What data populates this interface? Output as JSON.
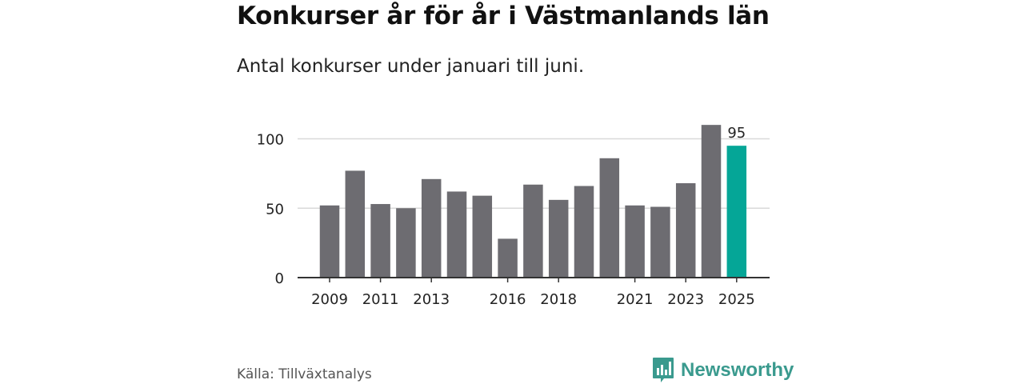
{
  "header": {
    "title": "Konkurser år för år i Västmanlands län",
    "subtitle": "Antal konkurser under januari till juni."
  },
  "footer": {
    "source": "Källa: Tillväxtanalys",
    "brand": "Newsworthy"
  },
  "colors": {
    "bar": "#6d6c71",
    "highlight": "#05a697",
    "grid": "#d9d9d9",
    "axis": "#333333",
    "brand": "#3a9a8e"
  },
  "chart_data": {
    "type": "bar",
    "title": "Konkurser år för år i Västmanlands län",
    "subtitle": "Antal konkurser under januari till juni.",
    "categories": [
      "2009",
      "2010",
      "2011",
      "2012",
      "2013",
      "2014",
      "2015",
      "2016",
      "2017",
      "2018",
      "2019",
      "2020",
      "2021",
      "2022",
      "2023",
      "2024",
      "2025"
    ],
    "values": [
      52,
      77,
      53,
      50,
      71,
      62,
      59,
      28,
      67,
      56,
      66,
      86,
      52,
      51,
      68,
      110,
      95
    ],
    "x_tick_labels": [
      "2009",
      "2011",
      "2013",
      "2016",
      "2018",
      "2021",
      "2023",
      "2025"
    ],
    "y_ticks": [
      0,
      50,
      100
    ],
    "ylim": [
      0,
      110
    ],
    "grid": true,
    "highlight_category": "2025",
    "data_labels": [
      {
        "category": "2025",
        "text": "95"
      }
    ],
    "xlabel": "",
    "ylabel": ""
  }
}
